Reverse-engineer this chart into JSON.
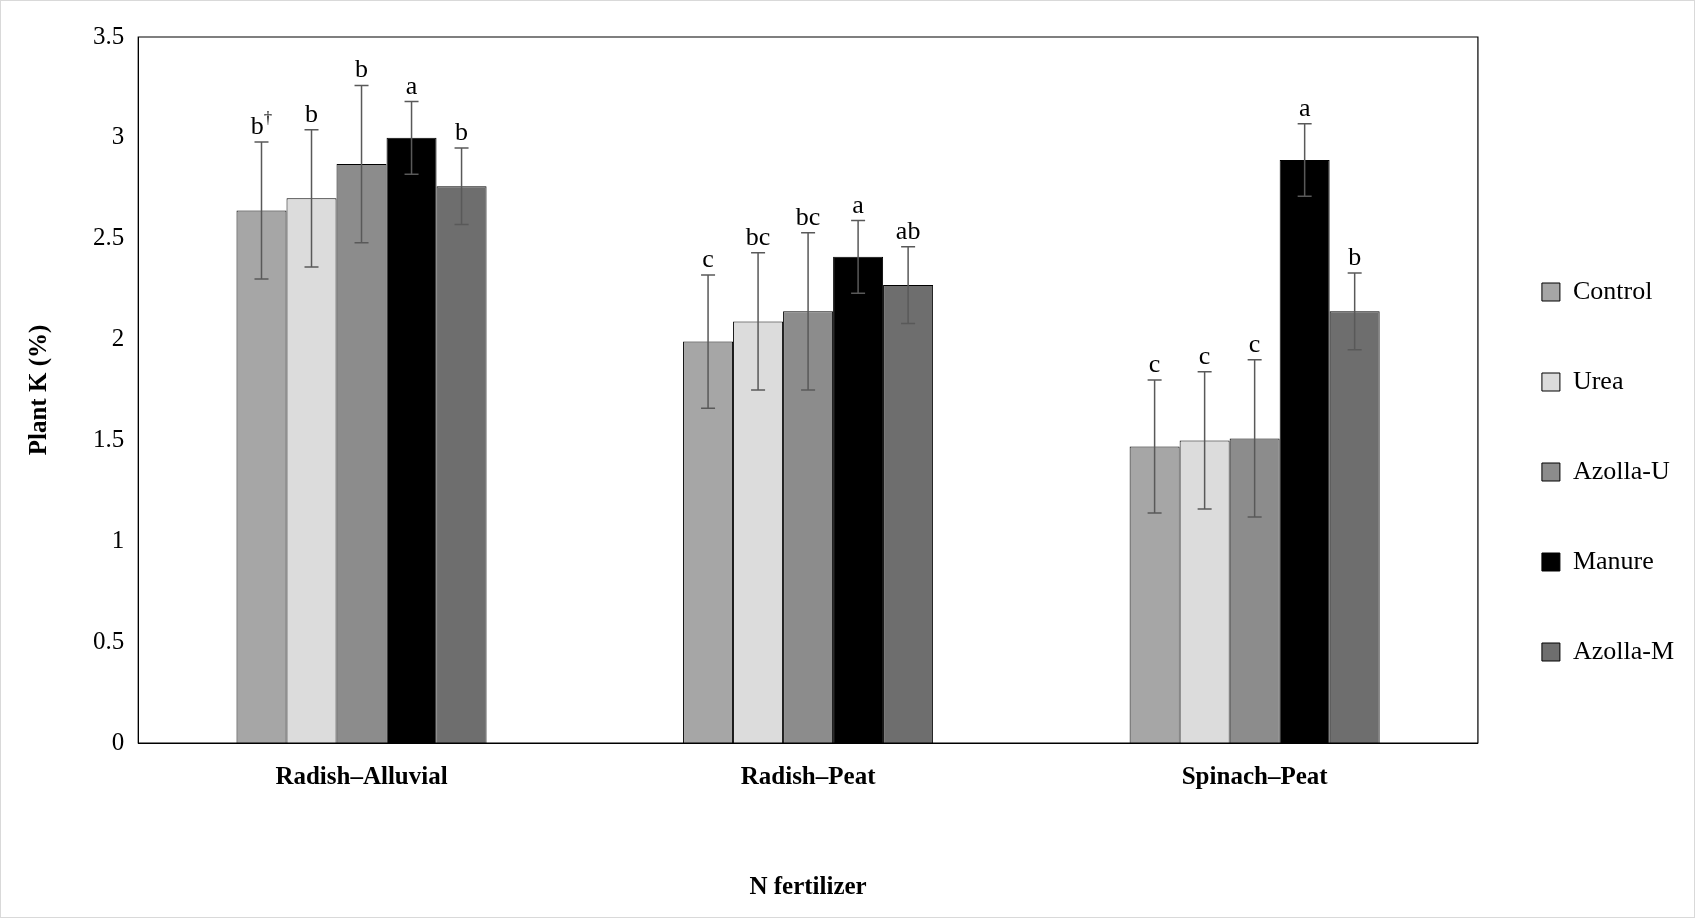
{
  "chart_data": {
    "type": "bar",
    "xlabel": "N fertilizer",
    "ylabel": "Plant K (%)",
    "categories": [
      "Radish–Alluvial",
      "Radish–Peat",
      "Spinach–Peat"
    ],
    "ylim": [
      0,
      3.5
    ],
    "yticks": [
      0,
      0.5,
      1,
      1.5,
      2,
      2.5,
      3,
      3.5
    ],
    "legend": "right",
    "series": [
      {
        "name": "Control",
        "color": "#a6a6a6",
        "values": [
          2.64,
          1.99,
          1.47
        ],
        "errors": [
          0.34,
          0.33,
          0.33
        ],
        "value_labels": [
          "b$^{†}$",
          "c",
          "c"
        ]
      },
      {
        "name": "Urea",
        "color": "#dcdcdc",
        "values": [
          2.7,
          2.09,
          1.5
        ],
        "errors": [
          0.34,
          0.34,
          0.34
        ],
        "value_labels": [
          "b",
          "bc",
          "c"
        ]
      },
      {
        "name": "Azolla-U",
        "color": "#8c8c8c",
        "values": [
          2.87,
          2.14,
          1.51
        ],
        "errors": [
          0.39,
          0.39,
          0.39
        ],
        "value_labels": [
          "b",
          "bc",
          "c"
        ]
      },
      {
        "name": "Manure",
        "color": "#000000",
        "values": [
          3.0,
          2.41,
          2.89
        ],
        "errors": [
          0.18,
          0.18,
          0.18
        ],
        "value_labels": [
          "a",
          "a",
          "a"
        ]
      },
      {
        "name": "Azolla-M",
        "color": "#6e6e6e",
        "values": [
          2.76,
          2.27,
          2.14
        ],
        "errors": [
          0.19,
          0.19,
          0.19
        ],
        "value_labels": [
          "b",
          "ab",
          "b"
        ]
      }
    ]
  }
}
